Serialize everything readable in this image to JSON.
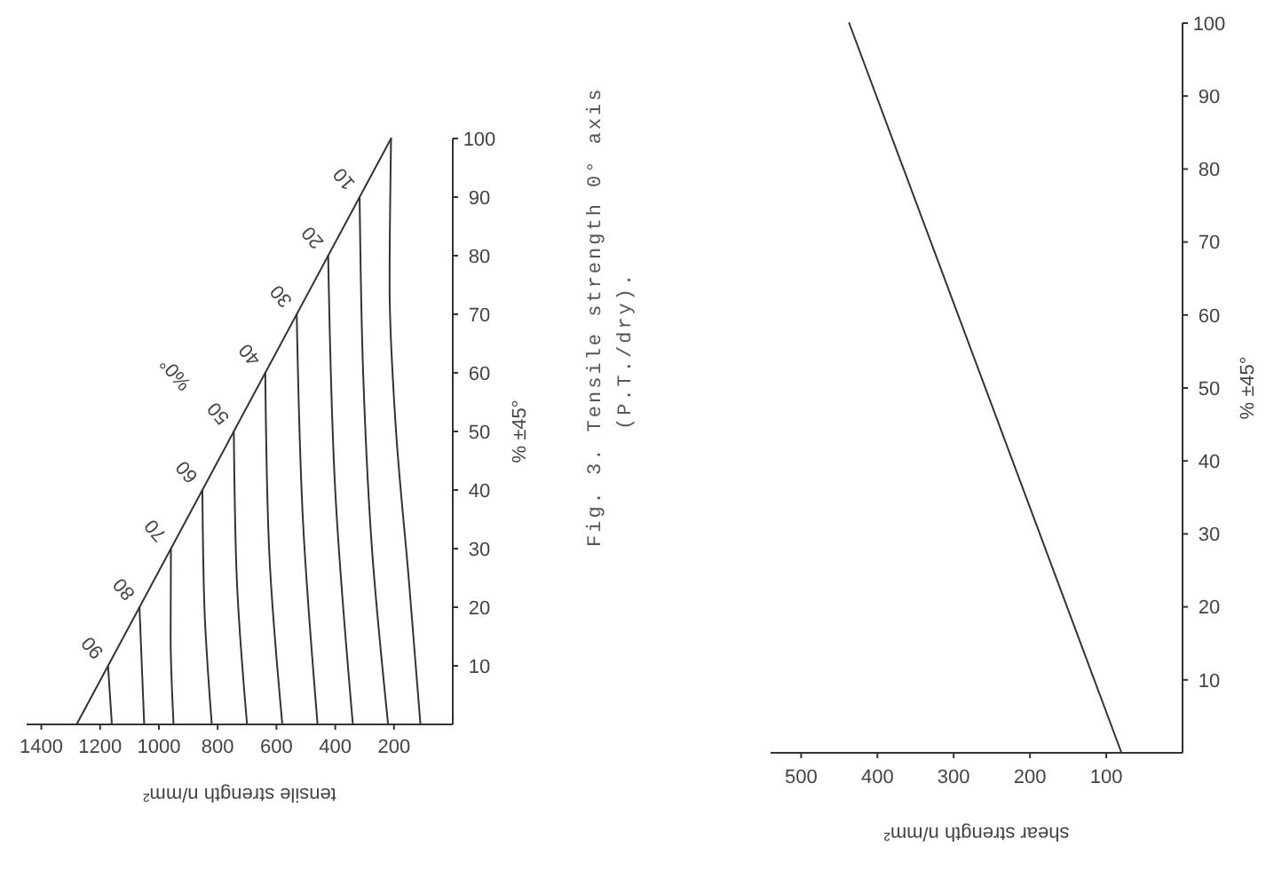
{
  "chart_data": [
    {
      "type": "line",
      "xlabel": "tensile strength n/mm²",
      "ylabel": "% ±45°",
      "xlim": [
        1450,
        0
      ],
      "ylim": [
        0,
        100
      ],
      "xticks": [
        1400,
        1200,
        1000,
        800,
        600,
        400,
        200
      ],
      "yticks": [
        10,
        20,
        30,
        40,
        50,
        60,
        70,
        80,
        90,
        100
      ],
      "grid": false,
      "marker": "none",
      "line_style": "solid",
      "annotations": [
        "%0°",
        "Fig. 3.   Tensile strength 0° axis",
        "(P.T./dry)."
      ],
      "series": [
        {
          "color": "#333333",
          "x": [
            110,
            150,
            193,
            215,
            210
          ],
          "values": [
            0,
            25,
            50,
            75,
            100
          ]
        },
        {
          "name": "10",
          "color": "#333333",
          "x": [
            220,
            275,
            305,
            317
          ],
          "values": [
            0,
            30,
            60,
            90
          ]
        },
        {
          "name": "20",
          "color": "#333333",
          "x": [
            340,
            400,
            424
          ],
          "values": [
            0,
            40,
            80
          ]
        },
        {
          "name": "30",
          "color": "#333333",
          "x": [
            460,
            510,
            531
          ],
          "values": [
            0,
            35,
            70
          ]
        },
        {
          "name": "40",
          "color": "#333333",
          "x": [
            580,
            625,
            638
          ],
          "values": [
            0,
            30,
            60
          ]
        },
        {
          "name": "50",
          "color": "#333333",
          "x": [
            700,
            735,
            745
          ],
          "values": [
            0,
            25,
            50
          ]
        },
        {
          "name": "60",
          "color": "#333333",
          "x": [
            820,
            845,
            852
          ],
          "values": [
            0,
            20,
            40
          ]
        },
        {
          "name": "70",
          "color": "#333333",
          "x": [
            950,
            960,
            959
          ],
          "values": [
            0,
            15,
            30
          ]
        },
        {
          "name": "80",
          "color": "#333333",
          "x": [
            1050,
            1066
          ],
          "values": [
            0,
            20
          ]
        },
        {
          "name": "90",
          "color": "#333333",
          "x": [
            1160,
            1173
          ],
          "values": [
            0,
            10
          ]
        },
        {
          "color": "#333333",
          "x": [
            1280,
            210
          ],
          "values": [
            0,
            100
          ]
        }
      ]
    },
    {
      "type": "line",
      "xlabel": "shear strength n/mm²",
      "ylabel": "% ±45°",
      "xlim": [
        540,
        0
      ],
      "ylim": [
        0,
        100
      ],
      "xticks": [
        500,
        400,
        300,
        200,
        100
      ],
      "yticks": [
        10,
        20,
        30,
        40,
        50,
        60,
        70,
        80,
        90,
        100
      ],
      "grid": false,
      "marker": "none",
      "line_style": "solid",
      "series": [
        {
          "color": "#333333",
          "x": [
            80,
            437
          ],
          "values": [
            0,
            100
          ]
        }
      ]
    }
  ]
}
